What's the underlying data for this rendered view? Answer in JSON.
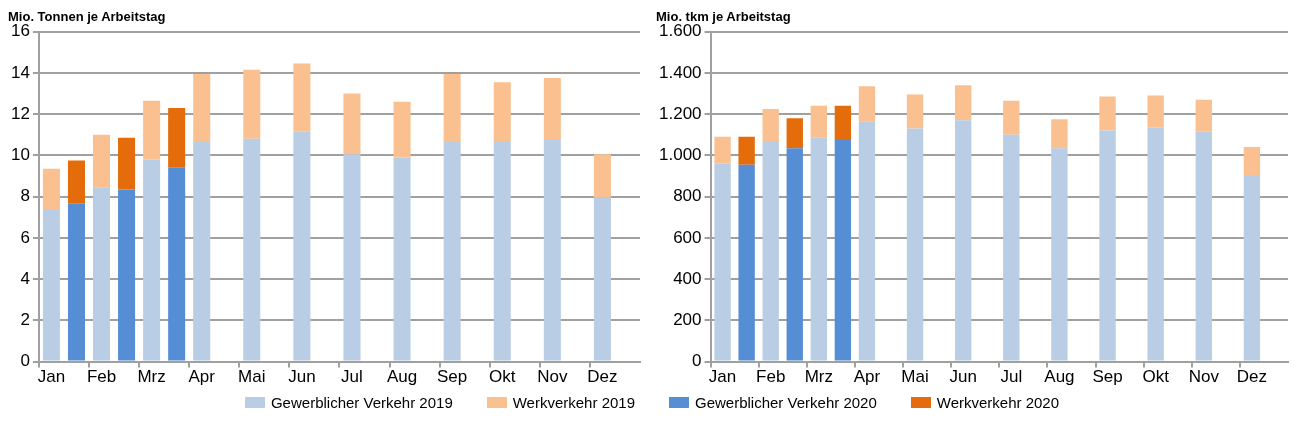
{
  "chart_data": [
    {
      "type": "bar",
      "title": "Mio. Tonnen je Arbeitstag",
      "stacked": true,
      "grid": "y",
      "legend": "bottom",
      "categories": [
        "Jan",
        null,
        "Feb",
        null,
        "Mrz",
        null,
        "Apr",
        null,
        "Mai",
        null,
        "Jun",
        null,
        "Jul",
        null,
        "Aug",
        null,
        "Sep",
        null,
        "Okt",
        null,
        "Nov",
        null,
        "Dez",
        null
      ],
      "ylim": [
        0,
        16
      ],
      "yticks": [
        0,
        2,
        4,
        6,
        8,
        10,
        12,
        14,
        16
      ],
      "series": [
        {
          "name": "Gewerblicher Verkehr 2019",
          "color": "#b9cde5",
          "values": [
            7.35,
            null,
            8.45,
            null,
            9.8,
            null,
            10.7,
            null,
            10.8,
            null,
            11.15,
            null,
            10.05,
            null,
            9.9,
            null,
            10.65,
            null,
            10.7,
            null,
            10.75,
            null,
            7.95,
            null
          ]
        },
        {
          "name": "Werkverkehr 2019",
          "color": "#fac090",
          "values": [
            2.0,
            null,
            2.55,
            null,
            2.85,
            null,
            3.25,
            null,
            3.35,
            null,
            3.3,
            null,
            2.95,
            null,
            2.7,
            null,
            3.3,
            null,
            2.85,
            null,
            3.0,
            null,
            2.1,
            null
          ]
        },
        {
          "name": "Gewerblicher Verkehr 2020",
          "color": "#558ed5",
          "values": [
            null,
            7.65,
            null,
            8.35,
            null,
            9.4,
            null,
            null,
            null,
            null,
            null,
            null,
            null,
            null,
            null,
            null,
            null,
            null,
            null,
            null,
            null,
            null,
            null,
            null
          ]
        },
        {
          "name": "Werkverkehr 2020",
          "color": "#e46c0a",
          "values": [
            null,
            2.1,
            null,
            2.5,
            null,
            2.9,
            null,
            null,
            null,
            null,
            null,
            null,
            null,
            null,
            null,
            null,
            null,
            null,
            null,
            null,
            null,
            null,
            null,
            null
          ]
        }
      ]
    },
    {
      "type": "bar",
      "title": "Mio. tkm je Arbeitstag",
      "stacked": true,
      "grid": "y",
      "categories": [
        "Jan",
        null,
        "Feb",
        null,
        "Mrz",
        null,
        "Apr",
        null,
        "Mai",
        null,
        "Jun",
        null,
        "Jul",
        null,
        "Aug",
        null,
        "Sep",
        null,
        "Okt",
        null,
        "Nov",
        null,
        "Dez",
        null
      ],
      "ylim": [
        0,
        1600
      ],
      "yticks": [
        0,
        200,
        400,
        600,
        800,
        {
          "value": 1000,
          "label": "1.000"
        },
        {
          "value": 1200,
          "label": "1.200"
        },
        {
          "value": 1400,
          "label": "1.400"
        },
        {
          "value": 1600,
          "label": "1.600"
        }
      ],
      "series": [
        {
          "color": "#b9cde5",
          "values": [
            960,
            null,
            1070,
            null,
            1085,
            null,
            1165,
            null,
            1130,
            null,
            1170,
            null,
            1100,
            null,
            1035,
            null,
            1120,
            null,
            1135,
            null,
            1115,
            null,
            905,
            null
          ]
        },
        {
          "color": "#fac090",
          "values": [
            130,
            null,
            155,
            null,
            155,
            null,
            170,
            null,
            165,
            null,
            170,
            null,
            165,
            null,
            140,
            null,
            165,
            null,
            155,
            null,
            155,
            null,
            135,
            null
          ]
        },
        {
          "color": "#558ed5",
          "values": [
            null,
            955,
            null,
            1035,
            null,
            1075,
            null,
            null,
            null,
            null,
            null,
            null,
            null,
            null,
            null,
            null,
            null,
            null,
            null,
            null,
            null,
            null,
            null,
            null
          ]
        },
        {
          "color": "#e46c0a",
          "values": [
            null,
            135,
            null,
            145,
            null,
            165,
            null,
            null,
            null,
            null,
            null,
            null,
            null,
            null,
            null,
            null,
            null,
            null,
            null,
            null,
            null,
            null,
            null,
            null
          ]
        }
      ]
    }
  ]
}
